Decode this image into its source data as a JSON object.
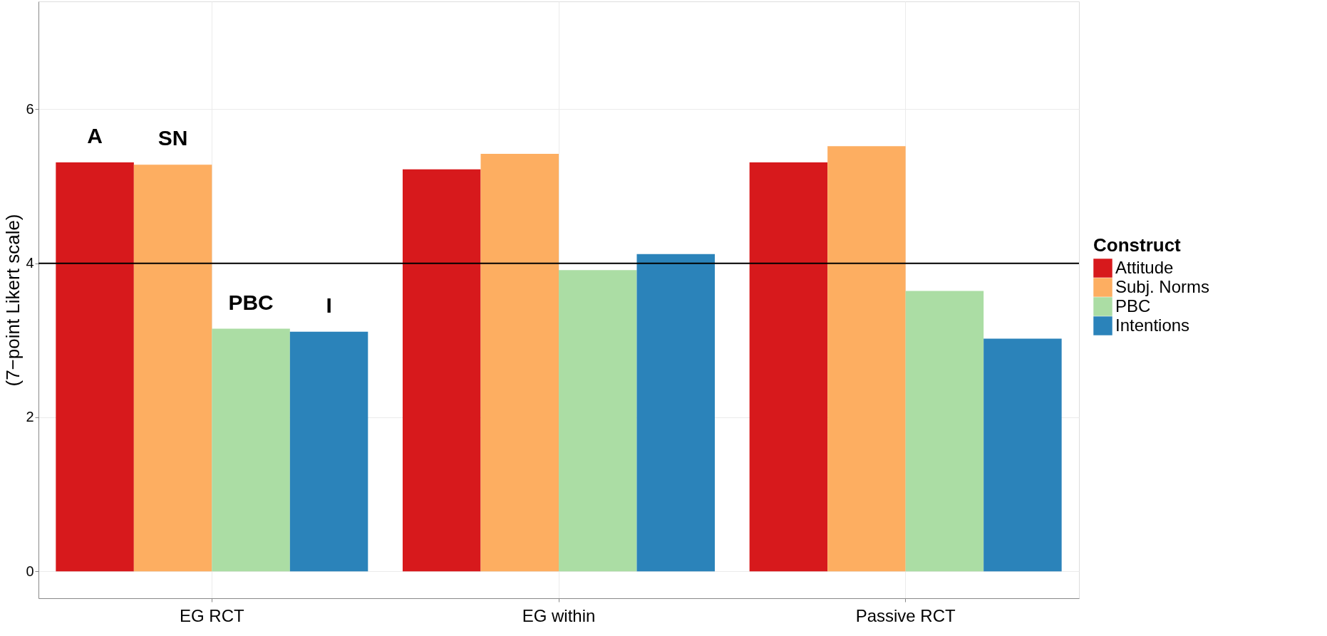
{
  "chart_data": {
    "type": "bar",
    "ylabel": "(7−point Likert scale)",
    "legend_title": "Construct",
    "categories": [
      "EG RCT",
      "EG within",
      "Passive RCT"
    ],
    "series": [
      {
        "name": "Attitude",
        "color": "#d7191c",
        "values": [
          5.31,
          5.22,
          5.31
        ]
      },
      {
        "name": "Subj. Norms",
        "color": "#fdae61",
        "values": [
          5.28,
          5.42,
          5.52
        ]
      },
      {
        "name": "PBC",
        "color": "#abdda4",
        "values": [
          3.15,
          3.91,
          3.64
        ]
      },
      {
        "name": "Intentions",
        "color": "#2b83ba",
        "values": [
          3.11,
          4.12,
          3.02
        ]
      }
    ],
    "ylim": [
      -0.35,
      7.4
    ],
    "yticks": [
      0,
      2,
      4,
      6
    ],
    "grid": true,
    "legend": "right",
    "ref_lines": [
      {
        "axis": "y",
        "value": 4,
        "color": "#000000"
      }
    ],
    "annotations": [
      "A",
      "SN",
      "PBC",
      "I"
    ]
  }
}
